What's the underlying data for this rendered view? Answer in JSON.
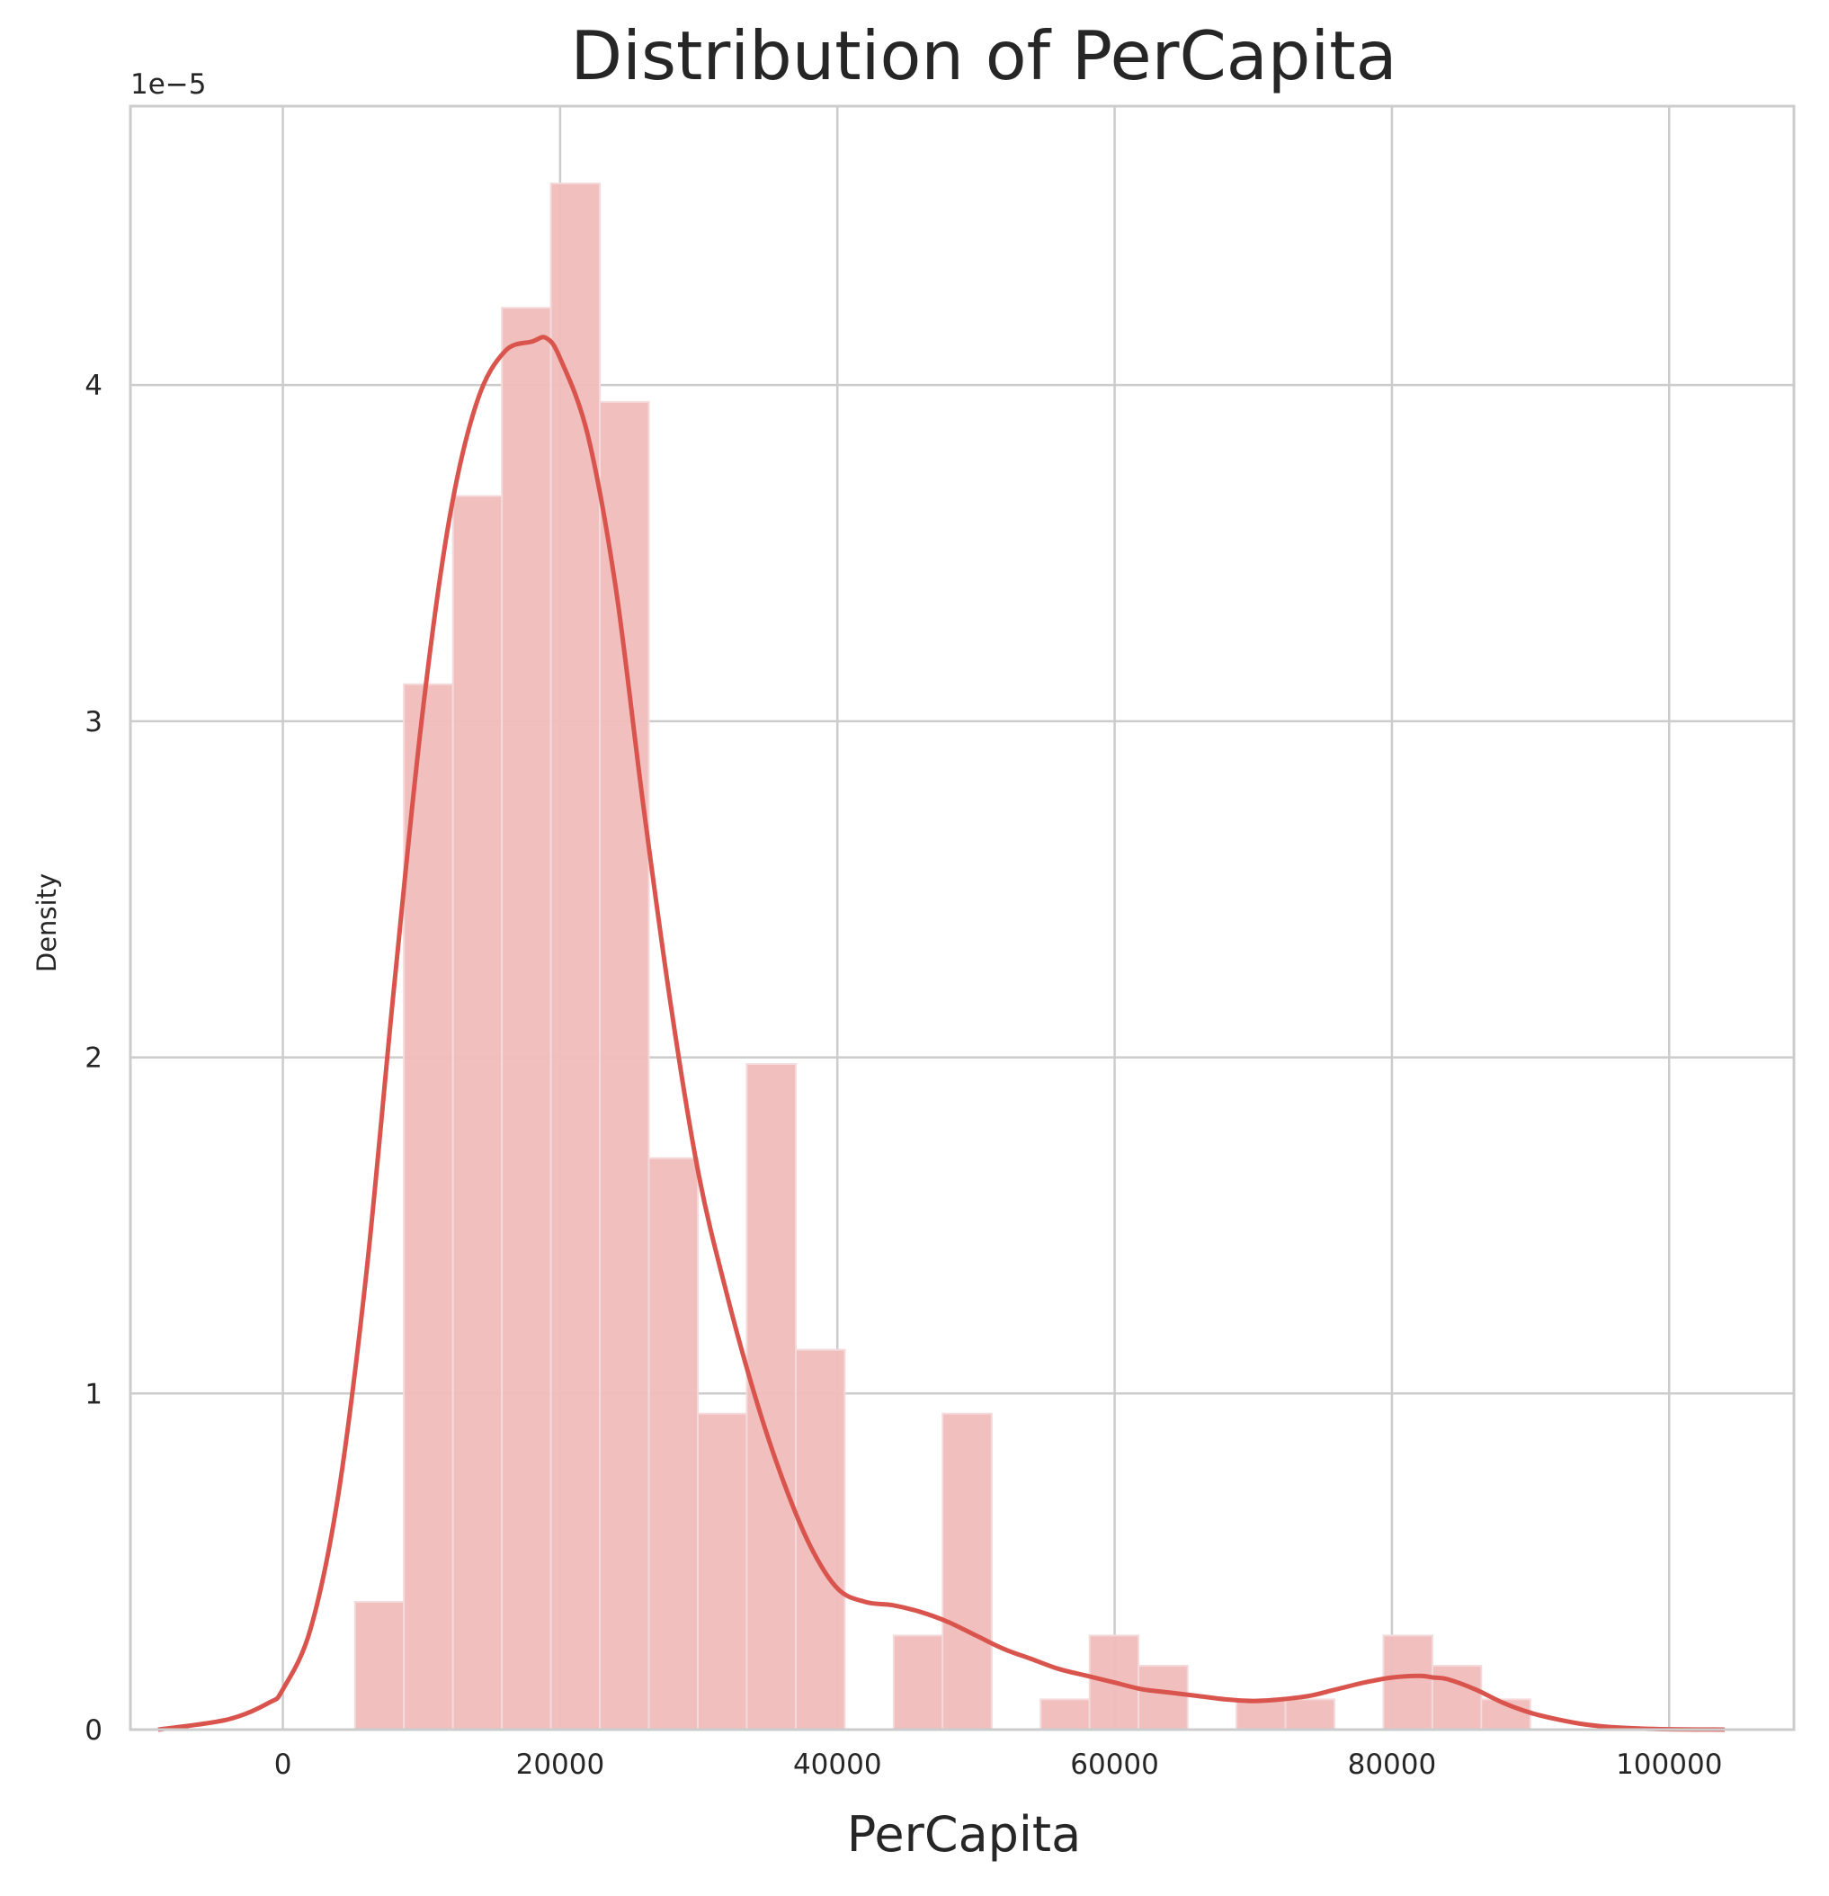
{
  "chart_data": {
    "type": "bar",
    "title": "Distribution of PerCapita",
    "xlabel": "PerCapita",
    "ylabel": "Density",
    "y_offset_label": "1e−5",
    "y_scale": 1e-05,
    "xlim": [
      -11000,
      109000
    ],
    "ylim": [
      0,
      4.83
    ],
    "grid": true,
    "x_ticks": [
      0,
      20000,
      40000,
      60000,
      80000,
      100000
    ],
    "x_tick_labels": [
      "0",
      "20000",
      "40000",
      "60000",
      "80000",
      "100000"
    ],
    "y_ticks": [
      0,
      1,
      2,
      3,
      4
    ],
    "y_tick_labels": [
      "0",
      "1",
      "2",
      "3",
      "4"
    ],
    "bin_edges": [
      5200,
      8730,
      12270,
      15800,
      19330,
      22860,
      26400,
      29930,
      33460,
      37000,
      40530,
      44060,
      47590,
      51130,
      54660,
      58190,
      61720,
      65260,
      68790,
      72320,
      75850,
      79390,
      82920,
      86450,
      89980
    ],
    "histogram_density": [
      0.38,
      3.11,
      3.67,
      4.23,
      4.6,
      3.95,
      1.7,
      0.94,
      1.98,
      1.13,
      0,
      0.28,
      0.94,
      0,
      0.09,
      0.28,
      0.19,
      0,
      0.09,
      0.09,
      0,
      0.28,
      0.19,
      0.09
    ],
    "series": [
      {
        "type": "line",
        "x": [
          -9000,
          -4000,
          -1000,
          0,
          2000,
          4000,
          6000,
          8000,
          10000,
          12000,
          14000,
          16000,
          18000,
          19000,
          20000,
          22000,
          24000,
          26000,
          28000,
          30000,
          32000,
          34000,
          36000,
          38000,
          40000,
          42000,
          44000,
          46000,
          48000,
          50000,
          52000,
          54000,
          56000,
          58000,
          60000,
          62000,
          64000,
          66000,
          68000,
          70000,
          72000,
          74000,
          76000,
          78000,
          80000,
          82000,
          83000,
          84000,
          86000,
          88000,
          90000,
          92000,
          94000,
          96000,
          98000,
          100000,
          104000
        ],
        "y": [
          0.0,
          0.03,
          0.08,
          0.12,
          0.3,
          0.7,
          1.35,
          2.2,
          3.0,
          3.6,
          3.95,
          4.1,
          4.13,
          4.14,
          4.08,
          3.85,
          3.4,
          2.75,
          2.15,
          1.65,
          1.3,
          1.0,
          0.75,
          0.55,
          0.42,
          0.38,
          0.37,
          0.35,
          0.32,
          0.28,
          0.24,
          0.21,
          0.18,
          0.16,
          0.14,
          0.12,
          0.11,
          0.1,
          0.09,
          0.085,
          0.09,
          0.1,
          0.12,
          0.14,
          0.155,
          0.16,
          0.155,
          0.15,
          0.12,
          0.08,
          0.05,
          0.03,
          0.015,
          0.007,
          0.003,
          0.001,
          0.0
        ]
      }
    ],
    "colors": {
      "bar_fill": "#efbcbb",
      "bar_edge": "#f4dada",
      "kde_line": "#d9544d",
      "grid": "#cccccc",
      "spine": "#cccccc",
      "text": "#262626"
    }
  }
}
